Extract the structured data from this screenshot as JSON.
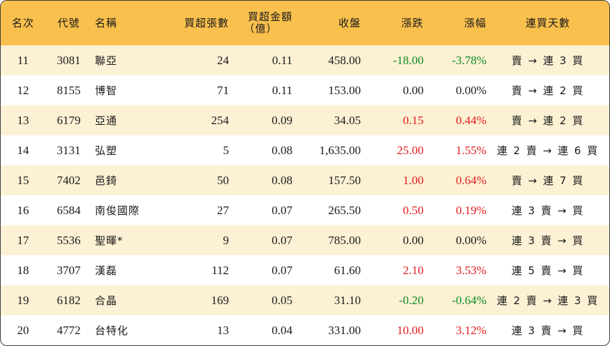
{
  "headers": {
    "rank": "名次",
    "code": "代號",
    "name": "名稱",
    "volume": "買超張數",
    "amount_line1": "買超金額",
    "amount_line2": "（億）",
    "close": "收盤",
    "change": "漲跌",
    "pct": "漲幅",
    "days": "連買天數"
  },
  "colors": {
    "header_bg": "#f9c04d",
    "alt_row_bg": "#fdf1d5",
    "up": "#e31a1c",
    "down": "#0a8a1e"
  },
  "rows": [
    {
      "rank": "11",
      "code": "3081",
      "name": "聯亞",
      "volume": "24",
      "amount": "0.11",
      "close": "458.00",
      "change": "-18.00",
      "pct": "-3.78%",
      "dir": "down",
      "days": "賣 → 連 3 買"
    },
    {
      "rank": "12",
      "code": "8155",
      "name": "博智",
      "volume": "71",
      "amount": "0.11",
      "close": "153.00",
      "change": "0.00",
      "pct": "0.00%",
      "dir": "flat",
      "days": "賣 → 連 2 買"
    },
    {
      "rank": "13",
      "code": "6179",
      "name": "亞通",
      "volume": "254",
      "amount": "0.09",
      "close": "34.05",
      "change": "0.15",
      "pct": "0.44%",
      "dir": "up",
      "days": "賣 → 連 2 買"
    },
    {
      "rank": "14",
      "code": "3131",
      "name": "弘塑",
      "volume": "5",
      "amount": "0.08",
      "close": "1,635.00",
      "change": "25.00",
      "pct": "1.55%",
      "dir": "up",
      "days": "連 2 賣 → 連 6 買"
    },
    {
      "rank": "15",
      "code": "7402",
      "name": "邑錡",
      "volume": "50",
      "amount": "0.08",
      "close": "157.50",
      "change": "1.00",
      "pct": "0.64%",
      "dir": "up",
      "days": "賣 → 連 7 買"
    },
    {
      "rank": "16",
      "code": "6584",
      "name": "南俊國際",
      "volume": "27",
      "amount": "0.07",
      "close": "265.50",
      "change": "0.50",
      "pct": "0.19%",
      "dir": "up",
      "days": "連 3 賣 → 買"
    },
    {
      "rank": "17",
      "code": "5536",
      "name": "聖暉*",
      "volume": "9",
      "amount": "0.07",
      "close": "785.00",
      "change": "0.00",
      "pct": "0.00%",
      "dir": "flat",
      "days": "連 3 賣 → 買"
    },
    {
      "rank": "18",
      "code": "3707",
      "name": "漢磊",
      "volume": "112",
      "amount": "0.07",
      "close": "61.60",
      "change": "2.10",
      "pct": "3.53%",
      "dir": "up",
      "days": "連 5 賣 → 買"
    },
    {
      "rank": "19",
      "code": "6182",
      "name": "合晶",
      "volume": "169",
      "amount": "0.05",
      "close": "31.10",
      "change": "-0.20",
      "pct": "-0.64%",
      "dir": "down",
      "days": "連 2 賣 → 連 3 買"
    },
    {
      "rank": "20",
      "code": "4772",
      "name": "台特化",
      "volume": "13",
      "amount": "0.04",
      "close": "331.00",
      "change": "10.00",
      "pct": "3.12%",
      "dir": "up",
      "days": "連 3 賣 → 買"
    }
  ]
}
